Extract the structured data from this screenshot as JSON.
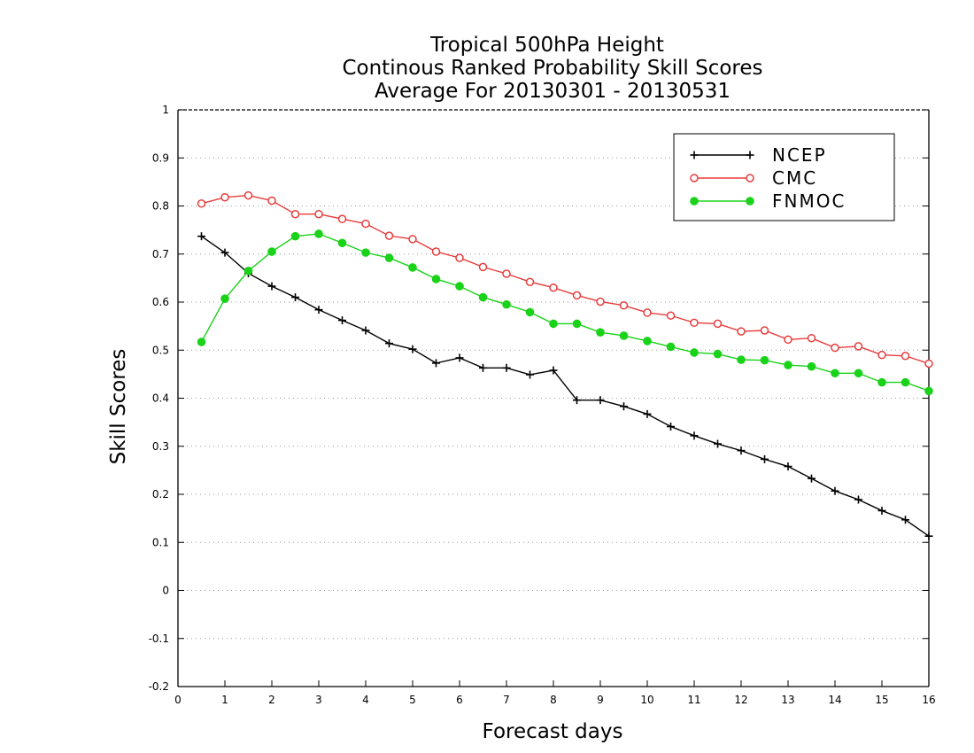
{
  "chart_data": {
    "type": "line",
    "title_lines": [
      "Tropical 500hPa Height",
      "Continous Ranked Probability Skill Scores",
      "Average For 20130301 - 20130531"
    ],
    "xlabel": "Forecast days",
    "ylabel": "Skill Scores",
    "xlim": [
      0,
      16
    ],
    "ylim": [
      -0.2,
      1
    ],
    "x_ticks": [
      0,
      1,
      2,
      3,
      4,
      5,
      6,
      7,
      8,
      9,
      10,
      11,
      12,
      13,
      14,
      15,
      16
    ],
    "x_tick_labels": [
      "0",
      "1",
      "2",
      "3",
      "4",
      "5",
      "6",
      "7",
      "8",
      "9",
      "10",
      "11",
      "12",
      "13",
      "14",
      "15",
      "16"
    ],
    "y_ticks": [
      -0.2,
      -0.1,
      0,
      0.1,
      0.2,
      0.3,
      0.4,
      0.5,
      0.6,
      0.7,
      0.8,
      0.9,
      1
    ],
    "y_tick_labels": [
      "-0.2",
      "-0.1",
      "0",
      "0.1",
      "0.2",
      "0.3",
      "0.4",
      "0.5",
      "0.6",
      "0.7",
      "0.8",
      "0.9",
      "1"
    ],
    "grid": "horizontal dotted",
    "legend_position": "top-right",
    "x": [
      0.5,
      1,
      1.5,
      2,
      2.5,
      3,
      3.5,
      4,
      4.5,
      5,
      5.5,
      6,
      6.5,
      7,
      7.5,
      8,
      8.5,
      9,
      9.5,
      10,
      10.5,
      11,
      11.5,
      12,
      12.5,
      13,
      13.5,
      14,
      14.5,
      15,
      15.5,
      16
    ],
    "series": [
      {
        "name": "NCEP",
        "color": "#000000",
        "marker": "plus",
        "values": [
          0.737,
          0.703,
          0.66,
          0.633,
          0.61,
          0.584,
          0.562,
          0.541,
          0.514,
          0.502,
          0.473,
          0.484,
          0.463,
          0.463,
          0.449,
          0.458,
          0.396,
          0.396,
          0.383,
          0.367,
          0.341,
          0.322,
          0.305,
          0.291,
          0.273,
          0.258,
          0.233,
          0.207,
          0.189,
          0.166,
          0.147,
          0.113
        ]
      },
      {
        "name": "CMC",
        "color": "#e83c3c",
        "marker": "open-circle",
        "values": [
          0.805,
          0.818,
          0.822,
          0.811,
          0.783,
          0.783,
          0.773,
          0.763,
          0.738,
          0.731,
          0.705,
          0.692,
          0.673,
          0.659,
          0.642,
          0.63,
          0.614,
          0.601,
          0.593,
          0.578,
          0.572,
          0.557,
          0.555,
          0.539,
          0.541,
          0.522,
          0.525,
          0.505,
          0.508,
          0.49,
          0.488,
          0.472
        ]
      },
      {
        "name": "FNMOC",
        "color": "#19d219",
        "marker": "filled-circle",
        "values": [
          0.517,
          0.607,
          0.665,
          0.705,
          0.737,
          0.742,
          0.723,
          0.703,
          0.692,
          0.672,
          0.648,
          0.633,
          0.61,
          0.595,
          0.579,
          0.555,
          0.555,
          0.537,
          0.53,
          0.519,
          0.507,
          0.495,
          0.492,
          0.48,
          0.479,
          0.469,
          0.466,
          0.452,
          0.452,
          0.433,
          0.433,
          0.415
        ]
      }
    ]
  }
}
